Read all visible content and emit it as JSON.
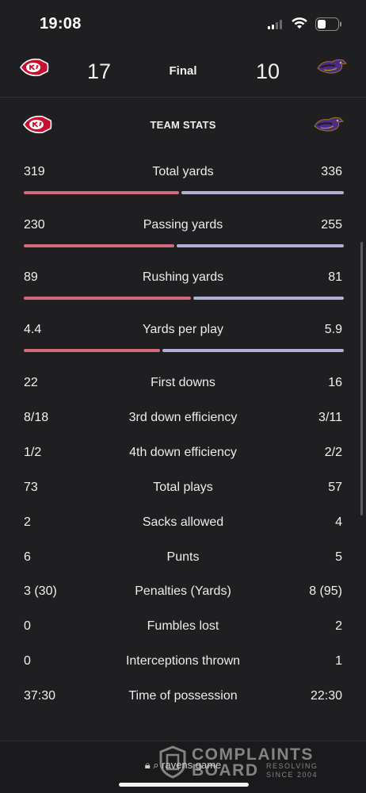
{
  "status_bar": {
    "time": "19:08"
  },
  "game": {
    "home_team_icon": "chiefs-logo",
    "away_team_icon": "ravens-logo",
    "home_score": "17",
    "away_score": "10",
    "status": "Final",
    "home_color": "#d4687f",
    "away_color": "#b3aed6"
  },
  "team_stats": {
    "title": "TEAM STATS",
    "rows": [
      {
        "label": "Total yards",
        "home": "319",
        "away": "336",
        "home_share": 0.487,
        "bar": true
      },
      {
        "label": "Passing yards",
        "home": "230",
        "away": "255",
        "home_share": 0.474,
        "bar": true
      },
      {
        "label": "Rushing yards",
        "home": "89",
        "away": "81",
        "home_share": 0.524,
        "bar": true
      },
      {
        "label": "Yards per play",
        "home": "4.4",
        "away": "5.9",
        "home_share": 0.427,
        "bar": true
      },
      {
        "label": "First downs",
        "home": "22",
        "away": "16"
      },
      {
        "label": "3rd down efficiency",
        "home": "8/18",
        "away": "3/11"
      },
      {
        "label": "4th down efficiency",
        "home": "1/2",
        "away": "2/2"
      },
      {
        "label": "Total plays",
        "home": "73",
        "away": "57"
      },
      {
        "label": "Sacks allowed",
        "home": "2",
        "away": "4"
      },
      {
        "label": "Punts",
        "home": "6",
        "away": "5"
      },
      {
        "label": "Penalties (Yards)",
        "home": "3 (30)",
        "away": "8 (95)"
      },
      {
        "label": "Fumbles lost",
        "home": "0",
        "away": "2"
      },
      {
        "label": "Interceptions thrown",
        "home": "0",
        "away": "1"
      },
      {
        "label": "Time of possession",
        "home": "37:30",
        "away": "22:30"
      }
    ]
  },
  "browser": {
    "url_text": "ravens game"
  },
  "watermark": {
    "line1": "COMPLAINTS",
    "line2": "BOARD",
    "line3": "RESOLVING",
    "line4": "SINCE 2004"
  }
}
